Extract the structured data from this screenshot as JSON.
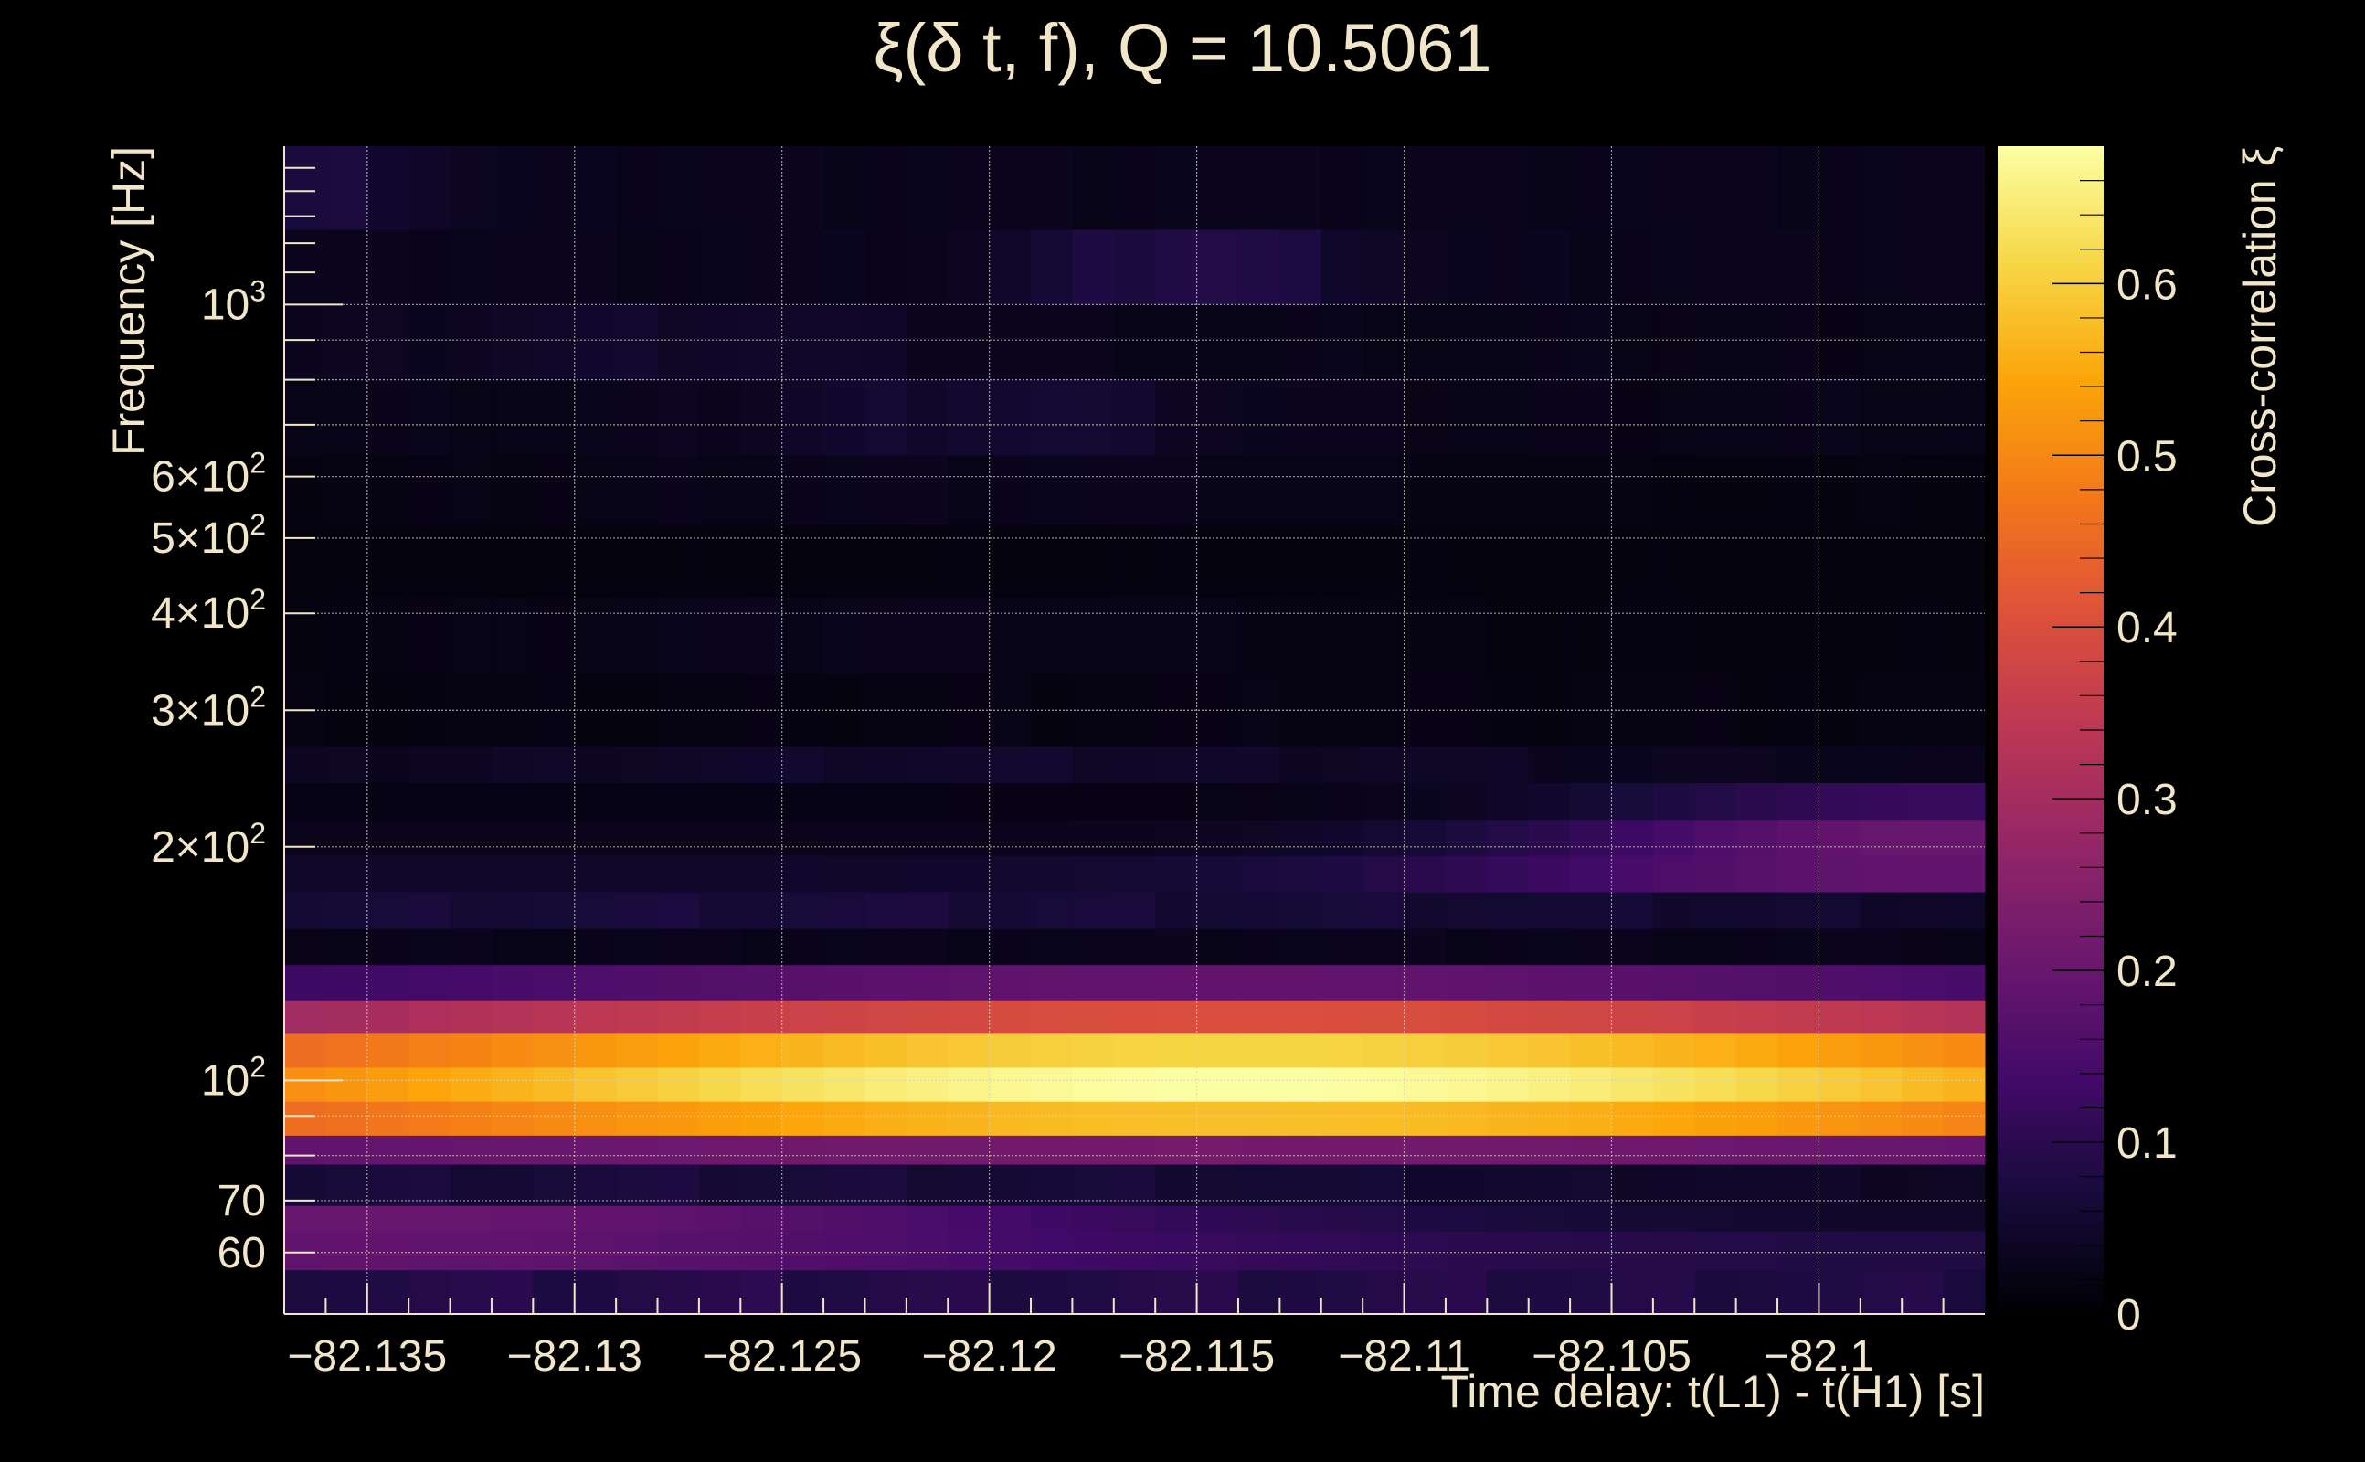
{
  "chart_data": {
    "type": "heatmap",
    "title": "ξ(δ t, f), Q = 10.5061",
    "xlabel": "Time delay: t(L1) - t(H1) [s]",
    "ylabel": "Frequency [Hz]",
    "colorbar_label": "Cross-correlation ξ",
    "colormap": "inferno",
    "xlim": [
      -82.137,
      -82.096
    ],
    "ylim": [
      50,
      1600
    ],
    "y_scale": "log",
    "grid": true,
    "x_ticks": [
      {
        "value": -82.135,
        "label": "−82.135"
      },
      {
        "value": -82.13,
        "label": "−82.13"
      },
      {
        "value": -82.125,
        "label": "−82.125"
      },
      {
        "value": -82.12,
        "label": "−82.12"
      },
      {
        "value": -82.115,
        "label": "−82.115"
      },
      {
        "value": -82.11,
        "label": "−82.11"
      },
      {
        "value": -82.105,
        "label": "−82.105"
      },
      {
        "value": -82.1,
        "label": "−82.1"
      }
    ],
    "y_ticks": [
      {
        "value": 60,
        "base": "60",
        "exp": ""
      },
      {
        "value": 70,
        "base": "70",
        "exp": ""
      },
      {
        "value": 100,
        "base": "10",
        "exp": "2"
      },
      {
        "value": 200,
        "base": "2×10",
        "exp": "2"
      },
      {
        "value": 300,
        "base": "3×10",
        "exp": "2"
      },
      {
        "value": 400,
        "base": "4×10",
        "exp": "2"
      },
      {
        "value": 500,
        "base": "5×10",
        "exp": "2"
      },
      {
        "value": 600,
        "base": "6×10",
        "exp": "2"
      },
      {
        "value": 1000,
        "base": "10",
        "exp": "3"
      }
    ],
    "colorbar_range": [
      0,
      0.68
    ],
    "colorbar_ticks": [
      {
        "value": 0,
        "label": "0"
      },
      {
        "value": 0.1,
        "label": "0.1"
      },
      {
        "value": 0.2,
        "label": "0.2"
      },
      {
        "value": 0.3,
        "label": "0.3"
      },
      {
        "value": 0.4,
        "label": "0.4"
      },
      {
        "value": 0.5,
        "label": "0.5"
      },
      {
        "value": 0.6,
        "label": "0.6"
      }
    ],
    "time_bins": {
      "start": -82.137,
      "step": 0.001,
      "count": 41
    },
    "frequency_bands": [
      {
        "f_lo": 50,
        "f_hi": 57,
        "peak": 0.09,
        "t_peak": -82.125,
        "width": 0.04,
        "base": 0.07
      },
      {
        "f_lo": 57,
        "f_hi": 64,
        "peak": 0.19,
        "t_peak": -82.135,
        "width": 0.02,
        "base": 0.08
      },
      {
        "f_lo": 64,
        "f_hi": 69,
        "peak": 0.2,
        "t_peak": -82.135,
        "width": 0.022,
        "base": 0.04
      },
      {
        "f_lo": 69,
        "f_hi": 78,
        "peak": 0.07,
        "t_peak": -82.128,
        "width": 0.03,
        "base": 0.03
      },
      {
        "f_lo": 78,
        "f_hi": 85,
        "peak": 0.22,
        "t_peak": -82.115,
        "width": 0.035,
        "base": 0.12
      },
      {
        "f_lo": 85,
        "f_hi": 94,
        "peak": 0.58,
        "t_peak": -82.114,
        "width": 0.028,
        "base": 0.32
      },
      {
        "f_lo": 94,
        "f_hi": 104,
        "peak": 0.68,
        "t_peak": -82.114,
        "width": 0.026,
        "base": 0.36
      },
      {
        "f_lo": 104,
        "f_hi": 115,
        "peak": 0.61,
        "t_peak": -82.114,
        "width": 0.026,
        "base": 0.32
      },
      {
        "f_lo": 115,
        "f_hi": 127,
        "peak": 0.4,
        "t_peak": -82.114,
        "width": 0.026,
        "base": 0.2
      },
      {
        "f_lo": 127,
        "f_hi": 141,
        "peak": 0.19,
        "t_peak": -82.114,
        "width": 0.026,
        "base": 0.07
      },
      {
        "f_lo": 141,
        "f_hi": 157,
        "peak": 0.03,
        "t_peak": -82.115,
        "width": 0.03,
        "base": 0.02
      },
      {
        "f_lo": 157,
        "f_hi": 175,
        "peak": 0.07,
        "t_peak": -82.125,
        "width": 0.03,
        "base": 0.04
      },
      {
        "f_lo": 175,
        "f_hi": 195,
        "peak": 0.19,
        "t_peak": -82.097,
        "width": 0.012,
        "base": 0.05
      },
      {
        "f_lo": 195,
        "f_hi": 217,
        "peak": 0.2,
        "t_peak": -82.097,
        "width": 0.01,
        "base": 0.03
      },
      {
        "f_lo": 217,
        "f_hi": 242,
        "peak": 0.12,
        "t_peak": -82.097,
        "width": 0.009,
        "base": 0.02
      },
      {
        "f_lo": 242,
        "f_hi": 270,
        "peak": 0.05,
        "t_peak": -82.12,
        "width": 0.02,
        "base": 0.02
      },
      {
        "f_lo": 270,
        "f_hi": 335,
        "peak": 0.02,
        "t_peak": -82.115,
        "width": 0.02,
        "base": 0.015
      },
      {
        "f_lo": 335,
        "f_hi": 420,
        "peak": 0.03,
        "t_peak": -82.123,
        "width": 0.01,
        "base": 0.015
      },
      {
        "f_lo": 420,
        "f_hi": 520,
        "peak": 0.015,
        "t_peak": -82.115,
        "width": 0.02,
        "base": 0.012
      },
      {
        "f_lo": 520,
        "f_hi": 640,
        "peak": 0.03,
        "t_peak": -82.12,
        "width": 0.012,
        "base": 0.015
      },
      {
        "f_lo": 640,
        "f_hi": 800,
        "peak": 0.06,
        "t_peak": -82.12,
        "width": 0.006,
        "base": 0.025
      },
      {
        "f_lo": 800,
        "f_hi": 1000,
        "peak": 0.05,
        "t_peak": -82.128,
        "width": 0.008,
        "base": 0.025
      },
      {
        "f_lo": 1000,
        "f_hi": 1250,
        "peak": 0.09,
        "t_peak": -82.115,
        "width": 0.004,
        "base": 0.03
      },
      {
        "f_lo": 1250,
        "f_hi": 1600,
        "peak": 0.07,
        "t_peak": -82.136,
        "width": 0.003,
        "base": 0.03
      }
    ]
  }
}
